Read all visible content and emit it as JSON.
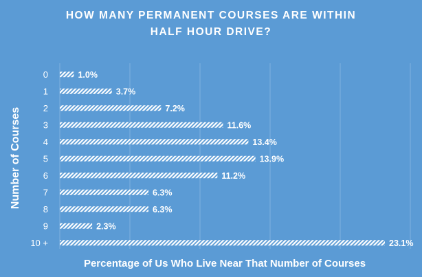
{
  "chart_data": {
    "type": "bar",
    "orientation": "horizontal",
    "title": "HOW MANY PERMANENT COURSES ARE WITHIN HALF HOUR DRIVE?",
    "title_lines": [
      "HOW MANY PERMANENT  COURSES ARE WITHIN",
      "HALF HOUR DRIVE?"
    ],
    "ylabel": "Number of Courses",
    "xlabel": "Percentage of Us Who Live Near That Number of Courses",
    "categories": [
      "0",
      "1",
      "2",
      "3",
      "4",
      "5",
      "6",
      "7",
      "8",
      "9",
      "10 +"
    ],
    "values": [
      1.0,
      3.7,
      7.2,
      11.6,
      13.4,
      13.9,
      11.2,
      6.3,
      6.3,
      2.3,
      23.1
    ],
    "value_labels": [
      "1.0%",
      "3.7%",
      "7.2%",
      "11.6%",
      "13.4%",
      "13.9%",
      "11.2%",
      "6.3%",
      "6.3%",
      "2.3%",
      "23.1%"
    ],
    "xlim": [
      0,
      23.1
    ],
    "grid": true,
    "legend": "none",
    "colors": {
      "background": "#5b9bd5",
      "bar": "#ffffff",
      "text": "#ffffff",
      "grid": "#7fb1de"
    }
  }
}
